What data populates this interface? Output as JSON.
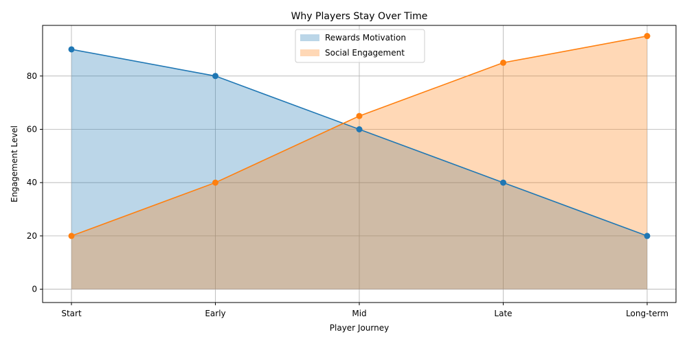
{
  "chart_data": {
    "type": "area",
    "title": "Why Players Stay Over Time",
    "xlabel": "Player Journey",
    "ylabel": "Engagement Level",
    "categories": [
      "Start",
      "Early",
      "Mid",
      "Late",
      "Long-term"
    ],
    "ylim": [
      -5,
      99
    ],
    "yticks": [
      0,
      20,
      40,
      60,
      80
    ],
    "grid": true,
    "legend_position": "top-center",
    "series": [
      {
        "name": "Rewards Motivation",
        "values": [
          90,
          80,
          60,
          40,
          20
        ],
        "color": "#1f77b4"
      },
      {
        "name": "Social Engagement",
        "values": [
          20,
          40,
          65,
          85,
          95
        ],
        "color": "#ff7f0e"
      }
    ]
  }
}
